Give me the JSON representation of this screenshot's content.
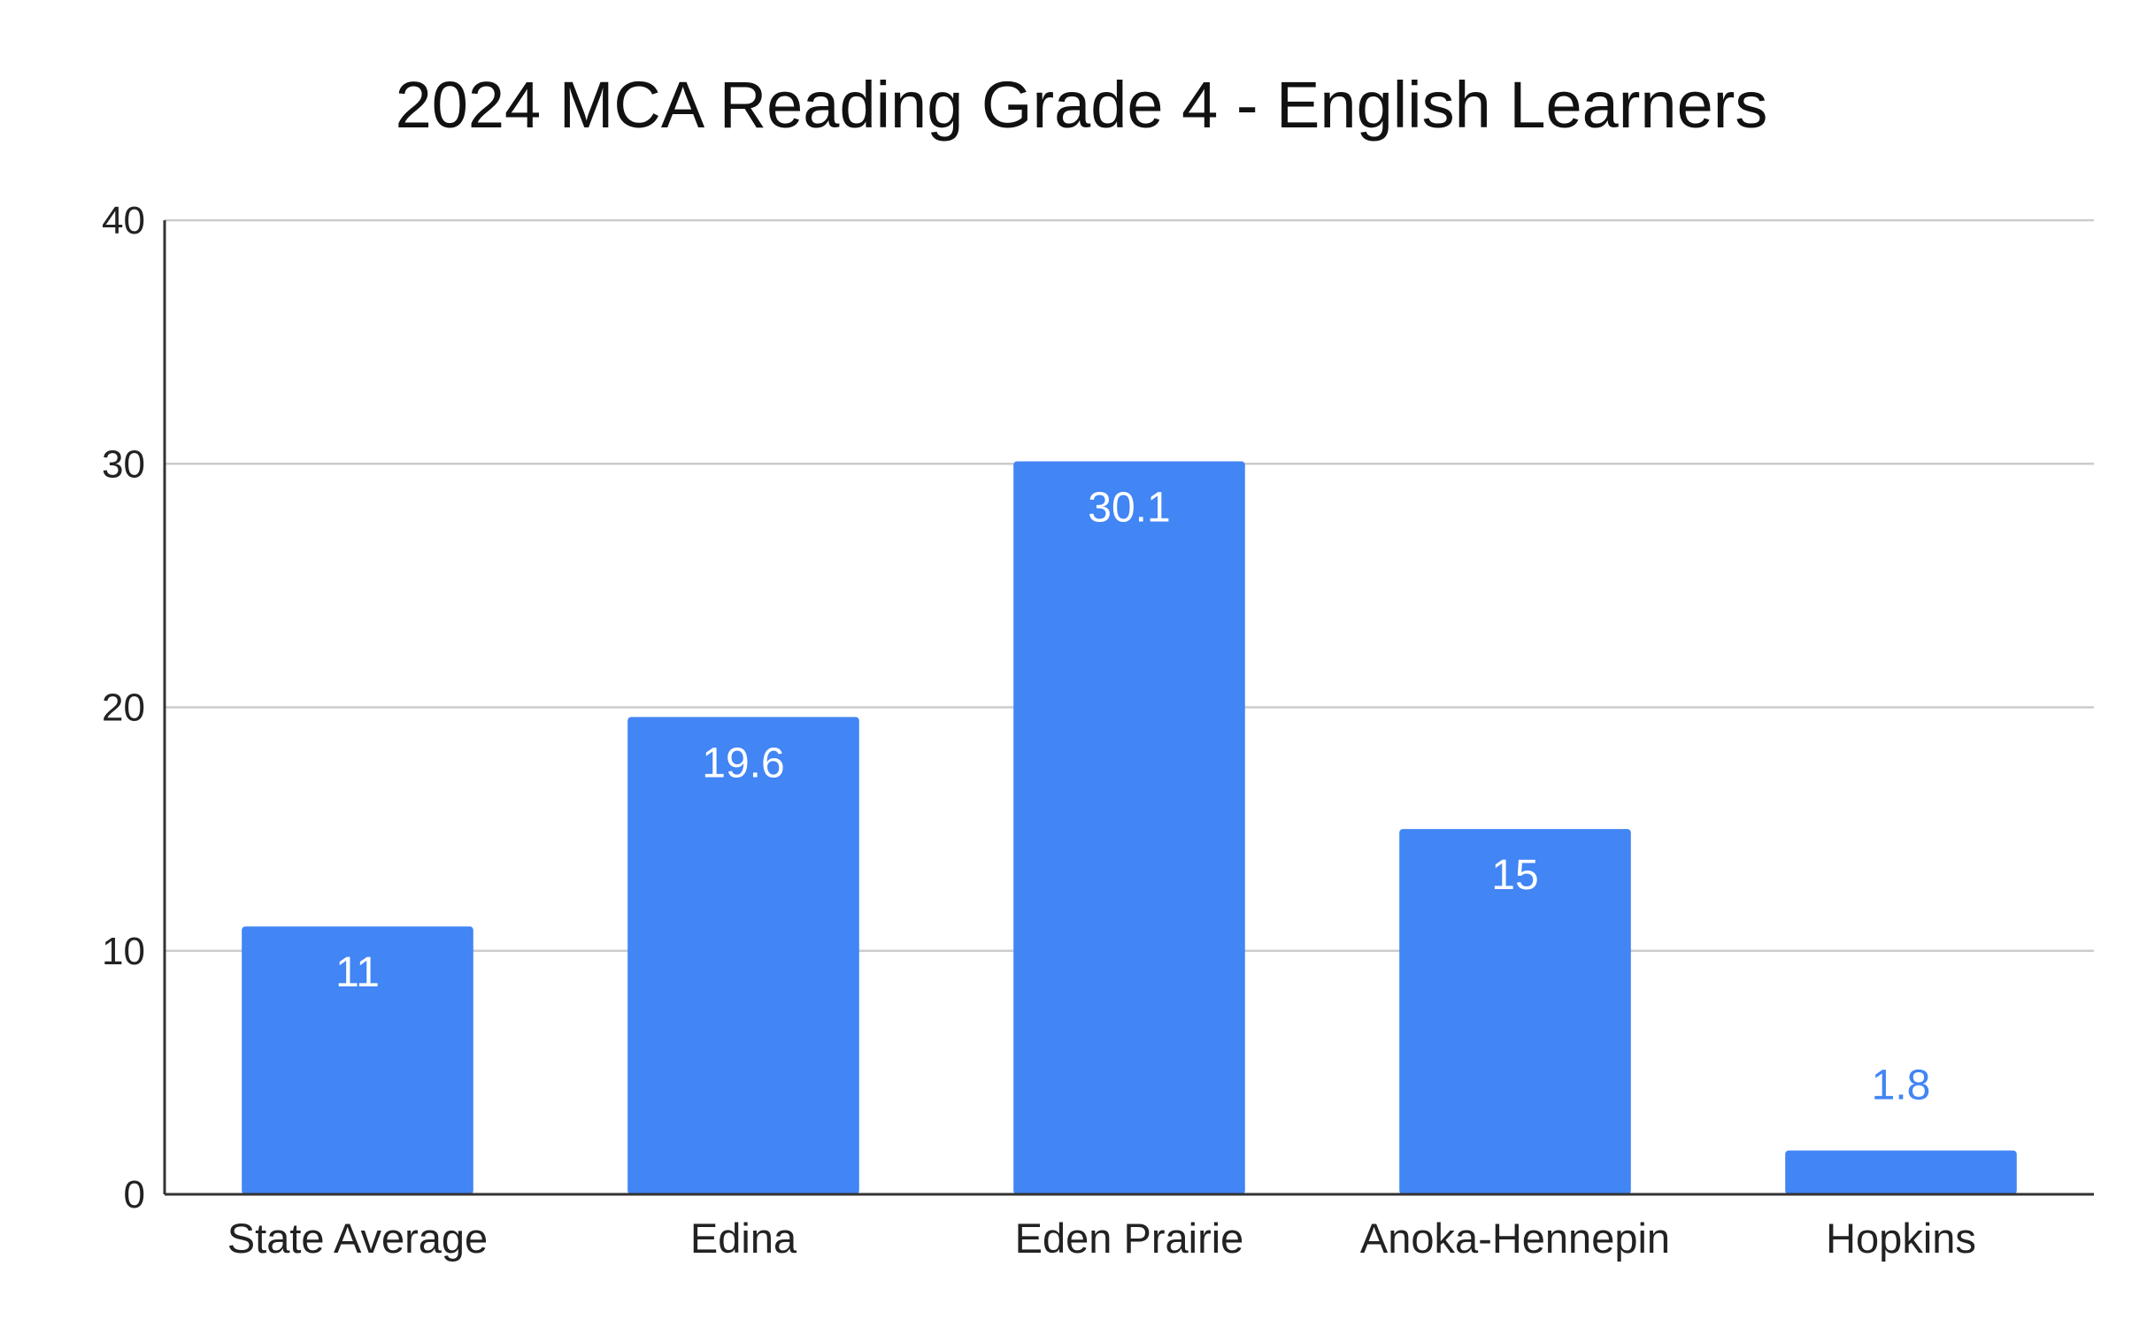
{
  "colors": {
    "bar": "#4285f4",
    "gridline": "#cccccc",
    "axis": "#333333",
    "text": "#222222",
    "label_inside": "#ffffff",
    "label_outside": "#4285f4"
  },
  "chart_data": {
    "type": "bar",
    "title": "2024 MCA Reading Grade 4 - English Learners",
    "xlabel": "",
    "ylabel": "",
    "categories": [
      "State Average",
      "Edina",
      "Eden Prairie",
      "Anoka-Hennepin",
      "Hopkins"
    ],
    "series": [
      {
        "values": [
          11,
          19.6,
          30.1,
          15,
          1.8
        ]
      }
    ],
    "data_labels": [
      "11",
      "19.6",
      "30.1",
      "15",
      "1.8"
    ],
    "ylim": [
      0,
      40
    ],
    "yticks": [
      0,
      10,
      20,
      30,
      40
    ],
    "grid": true,
    "legend": "none"
  }
}
